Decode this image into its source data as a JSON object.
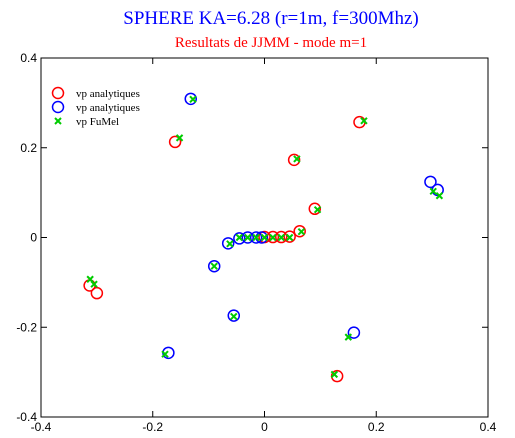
{
  "chart_data": {
    "type": "scatter",
    "title": "SPHERE KA=6.28 (r=1m, f=300Mhz)",
    "subtitle": "Resultats de JJMM  -  mode m=1",
    "xlabel": "",
    "ylabel": "",
    "xlim": [
      -0.4,
      0.4
    ],
    "ylim": [
      -0.4,
      0.4
    ],
    "x_ticks": [
      -0.4,
      -0.2,
      0,
      0.2,
      0.4
    ],
    "y_ticks": [
      -0.4,
      -0.2,
      0,
      0.2,
      0.4
    ],
    "x_tick_labels": [
      "-0.4",
      "-0.2",
      "0",
      "0.2",
      "0.4"
    ],
    "y_tick_labels": [
      "-0.4",
      "-0.2",
      "0",
      "0.2",
      "0.4"
    ],
    "grid": false,
    "legend_position": "top-left",
    "series": [
      {
        "name": "vp analytiques",
        "marker": "circle",
        "color": "#ff0000",
        "points": [
          [
            -0.313,
            -0.107
          ],
          [
            -0.3,
            -0.124
          ],
          [
            -0.16,
            0.213
          ],
          [
            0.053,
            0.173
          ],
          [
            0.17,
            0.257
          ],
          [
            0.09,
            0.064
          ],
          [
            0.063,
            0.014
          ],
          [
            0.13,
            -0.309
          ],
          [
            0.045,
            0.002
          ],
          [
            0.03,
            0.001
          ],
          [
            0.015,
            0.001
          ],
          [
            0.0,
            0.001
          ]
        ]
      },
      {
        "name": "vp analytiques",
        "marker": "circle",
        "color": "#0000ff",
        "points": [
          [
            -0.132,
            0.309
          ],
          [
            0.297,
            0.124
          ],
          [
            0.31,
            0.106
          ],
          [
            -0.172,
            -0.257
          ],
          [
            -0.055,
            -0.174
          ],
          [
            -0.09,
            -0.064
          ],
          [
            0.16,
            -0.212
          ],
          [
            -0.065,
            -0.013
          ],
          [
            -0.045,
            -0.002
          ],
          [
            -0.03,
            0.0
          ],
          [
            -0.015,
            0.0
          ],
          [
            -0.005,
            0.0
          ]
        ]
      },
      {
        "name": "vp FuMel",
        "marker": "x",
        "color": "#00cc00",
        "points": [
          [
            -0.312,
            -0.093
          ],
          [
            -0.305,
            -0.104
          ],
          [
            -0.128,
            0.308
          ],
          [
            -0.152,
            0.222
          ],
          [
            0.058,
            0.175
          ],
          [
            0.178,
            0.26
          ],
          [
            0.095,
            0.062
          ],
          [
            0.066,
            0.013
          ],
          [
            0.302,
            0.103
          ],
          [
            0.313,
            0.093
          ],
          [
            -0.062,
            -0.014
          ],
          [
            -0.09,
            -0.064
          ],
          [
            -0.055,
            -0.176
          ],
          [
            -0.178,
            -0.26
          ],
          [
            0.15,
            -0.222
          ],
          [
            0.125,
            -0.305
          ],
          [
            -0.045,
            0.0
          ],
          [
            -0.03,
            0.0
          ],
          [
            -0.015,
            0.0
          ],
          [
            0.0,
            0.0
          ],
          [
            0.015,
            0.0
          ],
          [
            0.03,
            0.0
          ],
          [
            0.045,
            0.0
          ]
        ]
      }
    ]
  }
}
